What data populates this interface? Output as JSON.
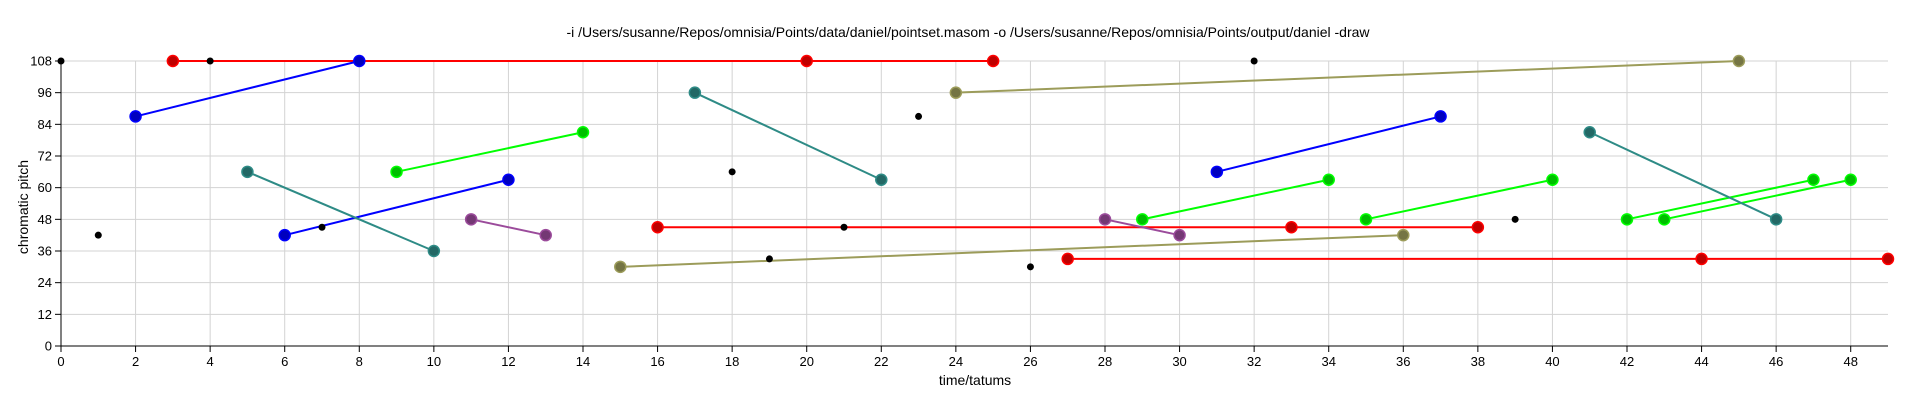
{
  "chart_data": {
    "type": "scatter",
    "title": "-i /Users/susanne/Repos/omnisia/Points/data/daniel/pointset.masom -o /Users/susanne/Repos/omnisia/Points/output/daniel -draw",
    "xlabel": "time/tatums",
    "ylabel": "chromatic pitch",
    "xlim": [
      0,
      49
    ],
    "ylim": [
      0,
      108
    ],
    "xticks": [
      0,
      2,
      4,
      6,
      8,
      10,
      12,
      14,
      16,
      18,
      20,
      22,
      24,
      26,
      28,
      30,
      32,
      34,
      36,
      38,
      40,
      42,
      44,
      46,
      48
    ],
    "yticks": [
      0,
      12,
      24,
      36,
      48,
      60,
      72,
      84,
      96,
      108
    ],
    "grid": true,
    "points": [
      {
        "x": 0,
        "y": 108
      },
      {
        "x": 1,
        "y": 42
      },
      {
        "x": 4,
        "y": 108
      },
      {
        "x": 7,
        "y": 45
      },
      {
        "x": 18,
        "y": 66
      },
      {
        "x": 19,
        "y": 33
      },
      {
        "x": 21,
        "y": 45
      },
      {
        "x": 23,
        "y": 87
      },
      {
        "x": 26,
        "y": 30
      },
      {
        "x": 32,
        "y": 108
      },
      {
        "x": 39,
        "y": 48
      }
    ],
    "patterns": [
      {
        "color": "#ff0000",
        "points": [
          {
            "x": 3,
            "y": 108
          },
          {
            "x": 20,
            "y": 108
          },
          {
            "x": 25,
            "y": 108
          }
        ]
      },
      {
        "color": "#ff0000",
        "points": [
          {
            "x": 16,
            "y": 45
          },
          {
            "x": 33,
            "y": 45
          },
          {
            "x": 38,
            "y": 45
          }
        ]
      },
      {
        "color": "#ff0000",
        "points": [
          {
            "x": 27,
            "y": 33
          },
          {
            "x": 44,
            "y": 33
          },
          {
            "x": 49,
            "y": 33
          }
        ]
      },
      {
        "color": "#0000ff",
        "points": [
          {
            "x": 2,
            "y": 87
          },
          {
            "x": 8,
            "y": 108
          }
        ]
      },
      {
        "color": "#0000ff",
        "points": [
          {
            "x": 6,
            "y": 42
          },
          {
            "x": 12,
            "y": 63
          }
        ]
      },
      {
        "color": "#0000ff",
        "points": [
          {
            "x": 31,
            "y": 66
          },
          {
            "x": 37,
            "y": 87
          }
        ]
      },
      {
        "color": "#00ff00",
        "points": [
          {
            "x": 9,
            "y": 66
          },
          {
            "x": 14,
            "y": 81
          }
        ]
      },
      {
        "color": "#00ff00",
        "points": [
          {
            "x": 29,
            "y": 48
          },
          {
            "x": 34,
            "y": 63
          }
        ]
      },
      {
        "color": "#00ff00",
        "points": [
          {
            "x": 35,
            "y": 48
          },
          {
            "x": 40,
            "y": 63
          }
        ]
      },
      {
        "color": "#00ff00",
        "points": [
          {
            "x": 42,
            "y": 48
          },
          {
            "x": 47,
            "y": 63
          }
        ]
      },
      {
        "color": "#00ff00",
        "points": [
          {
            "x": 43,
            "y": 48
          },
          {
            "x": 48,
            "y": 63
          }
        ]
      },
      {
        "color": "#2e8b86",
        "points": [
          {
            "x": 5,
            "y": 66
          },
          {
            "x": 10,
            "y": 36
          }
        ]
      },
      {
        "color": "#2e8b86",
        "points": [
          {
            "x": 17,
            "y": 96
          },
          {
            "x": 22,
            "y": 63
          }
        ]
      },
      {
        "color": "#2e8b86",
        "points": [
          {
            "x": 41,
            "y": 81
          },
          {
            "x": 46,
            "y": 48
          }
        ]
      },
      {
        "color": "#9b4b9b",
        "points": [
          {
            "x": 11,
            "y": 48
          },
          {
            "x": 13,
            "y": 42
          }
        ]
      },
      {
        "color": "#9b4b9b",
        "points": [
          {
            "x": 28,
            "y": 48
          },
          {
            "x": 30,
            "y": 42
          }
        ]
      },
      {
        "color": "#9c9c5a",
        "points": [
          {
            "x": 15,
            "y": 30
          },
          {
            "x": 36,
            "y": 42
          }
        ]
      },
      {
        "color": "#9c9c5a",
        "points": [
          {
            "x": 24,
            "y": 96
          },
          {
            "x": 45,
            "y": 108
          }
        ]
      }
    ]
  }
}
